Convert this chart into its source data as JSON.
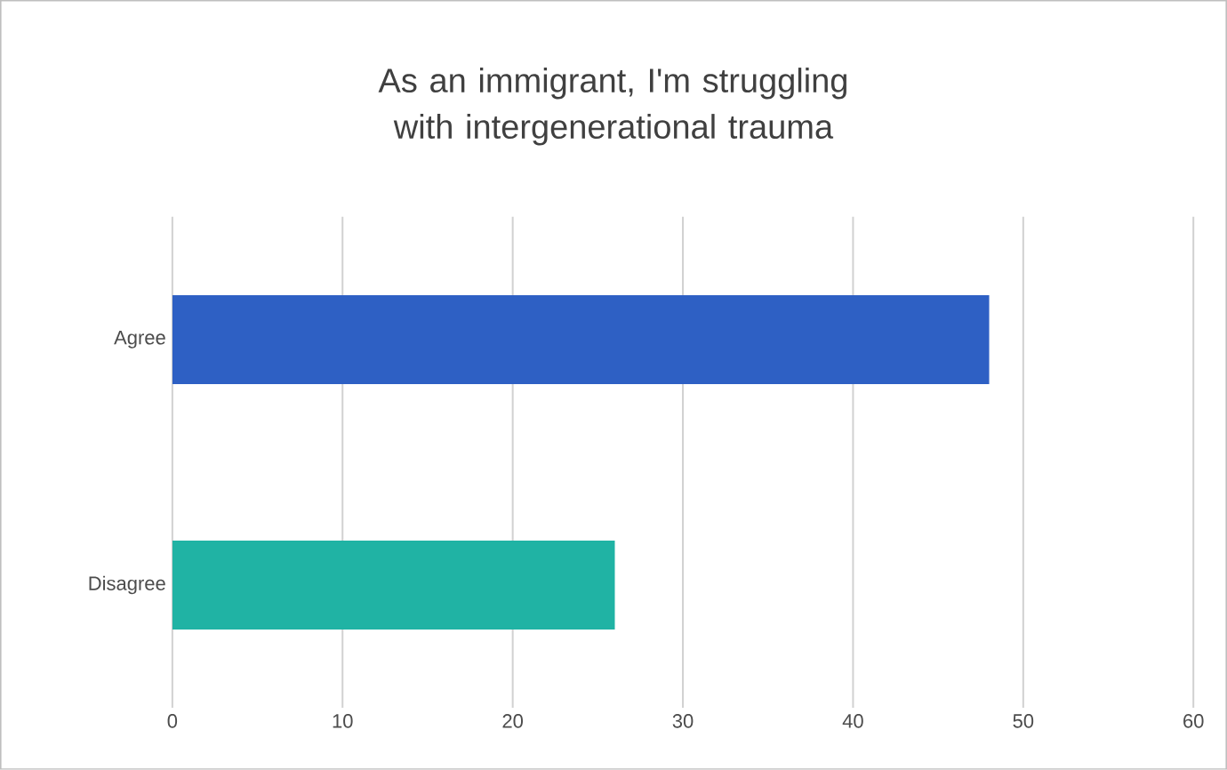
{
  "chart_data": {
    "type": "bar",
    "orientation": "horizontal",
    "title": "As an immigrant, I'm struggling with intergenerational trauma",
    "categories": [
      "Agree",
      "Disagree"
    ],
    "values": [
      48,
      26
    ],
    "colors": [
      "#2e60c4",
      "#20b3a4"
    ],
    "xlim": [
      0,
      60
    ],
    "xticks": [
      0,
      10,
      20,
      30,
      40,
      50,
      60
    ],
    "grid": "x"
  }
}
